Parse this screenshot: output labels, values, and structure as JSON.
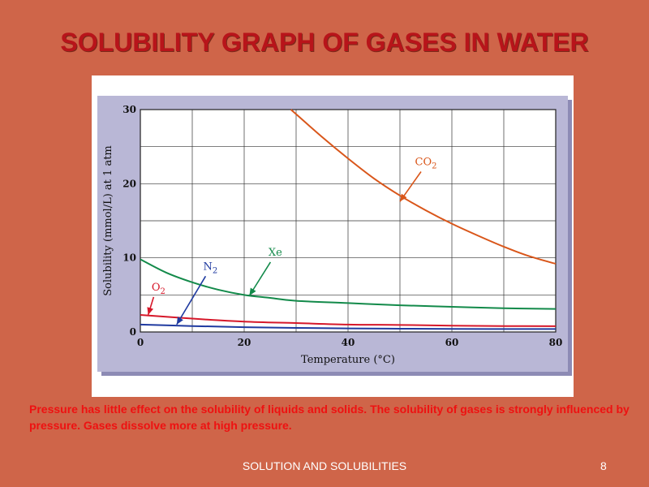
{
  "slide": {
    "title": "SOLUBILITY GRAPH OF GASES IN WATER",
    "body_text": "Pressure has little effect on the solubility  of liquids and solids. The solubility  of gases is strongly influenced by pressure. Gases dissolve more at high pressure.",
    "footer_title": "SOLUTION AND SOLUBILITIES",
    "page_number": "8"
  },
  "colors": {
    "background": "#cf6549",
    "title": "#b8141a",
    "body_text": "#ee1111",
    "plot_frame": "#b9b7d6",
    "co2": "#d9561a",
    "xe": "#138a4a",
    "n2": "#1f3aa0",
    "o2": "#d6182a"
  },
  "chart_data": {
    "type": "line",
    "title": "",
    "xlabel": "Temperature (°C)",
    "ylabel": "Solubility (mmol/L) at 1 atm",
    "xlim": [
      0,
      80
    ],
    "ylim": [
      0,
      30
    ],
    "xticks": [
      0,
      20,
      40,
      60,
      80
    ],
    "yticks": [
      0,
      10,
      20,
      30
    ],
    "grid": true,
    "series": [
      {
        "name": "CO2",
        "label_main": "CO",
        "label_sub": "2",
        "color": "#d9561a",
        "x": [
          29,
          35,
          40,
          45,
          50,
          55,
          60,
          65,
          70,
          75,
          80
        ],
        "y": [
          30,
          26.3,
          23.4,
          20.7,
          18.4,
          16.4,
          14.6,
          13.0,
          11.5,
          10.2,
          9.2
        ]
      },
      {
        "name": "Xe",
        "label_main": "Xe",
        "label_sub": "",
        "color": "#138a4a",
        "x": [
          0,
          5,
          10,
          15,
          20,
          25,
          30,
          40,
          50,
          60,
          70,
          80
        ],
        "y": [
          9.8,
          8.0,
          6.7,
          5.7,
          5.0,
          4.6,
          4.2,
          3.9,
          3.6,
          3.4,
          3.2,
          3.1
        ]
      },
      {
        "name": "O2",
        "label_main": "O",
        "label_sub": "2",
        "color": "#d6182a",
        "x": [
          0,
          10,
          20,
          30,
          40,
          50,
          60,
          70,
          80
        ],
        "y": [
          2.3,
          1.8,
          1.4,
          1.2,
          1.0,
          0.95,
          0.85,
          0.8,
          0.78
        ]
      },
      {
        "name": "N2",
        "label_main": "N",
        "label_sub": "2",
        "color": "#1f3aa0",
        "x": [
          0,
          10,
          20,
          30,
          40,
          50,
          60,
          70,
          80
        ],
        "y": [
          1.0,
          0.8,
          0.65,
          0.55,
          0.48,
          0.44,
          0.41,
          0.4,
          0.4
        ]
      }
    ],
    "annotations": [
      {
        "series": "CO2",
        "text": "CO2",
        "text_x": 55,
        "text_y": 22.5,
        "arrow_to_x": 50,
        "arrow_to_y": 17.6
      },
      {
        "series": "Xe",
        "text": "Xe",
        "text_x": 26,
        "text_y": 10.3,
        "arrow_to_x": 21,
        "arrow_to_y": 4.9
      },
      {
        "series": "N2",
        "text": "N2",
        "text_x": 13.5,
        "text_y": 8.4,
        "arrow_to_x": 7,
        "arrow_to_y": 1.0
      },
      {
        "series": "O2",
        "text": "O2",
        "text_x": 3.5,
        "text_y": 5.6,
        "arrow_to_x": 1.5,
        "arrow_to_y": 2.3
      }
    ]
  }
}
